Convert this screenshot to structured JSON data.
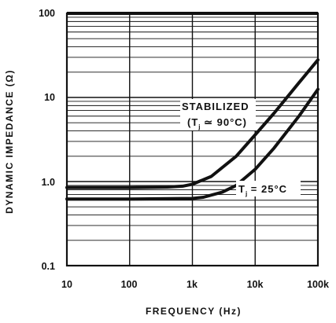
{
  "chart_data": {
    "type": "line",
    "title": "",
    "xlabel": "FREQUENCY (Hz)",
    "ylabel": "DYNAMIC IMPEDANCE (Ω)",
    "x_scale": "log",
    "y_scale": "log",
    "xlim": [
      10,
      100000
    ],
    "ylim": [
      0.1,
      100
    ],
    "x_ticks": [
      "10",
      "100",
      "1k",
      "10k",
      "100k"
    ],
    "y_ticks": [
      "100",
      "10",
      "1.0",
      "0.1"
    ],
    "grid": true,
    "series": [
      {
        "name": "STABILIZED (Tj ≃ 90°C)",
        "x": [
          10,
          100,
          400,
          700,
          1000,
          2000,
          5000,
          10000,
          20000,
          50000,
          100000
        ],
        "y": [
          0.85,
          0.85,
          0.86,
          0.88,
          0.93,
          1.15,
          2.0,
          3.6,
          6.5,
          15,
          28
        ]
      },
      {
        "name": "Tj = 25°C",
        "x": [
          10,
          100,
          1000,
          1500,
          3000,
          5000,
          10000,
          20000,
          50000,
          100000
        ],
        "y": [
          0.62,
          0.62,
          0.63,
          0.65,
          0.75,
          0.9,
          1.4,
          2.5,
          6.0,
          12.5
        ]
      }
    ],
    "annotations": {
      "stabilized_line1": "STABILIZED",
      "stabilized_line2_pre": "(T",
      "stabilized_line2_sub": "j",
      "stabilized_line2_post": " ≃ 90°C)",
      "room_pre": "T",
      "room_sub": "j",
      "room_post": " = 25°C"
    }
  }
}
